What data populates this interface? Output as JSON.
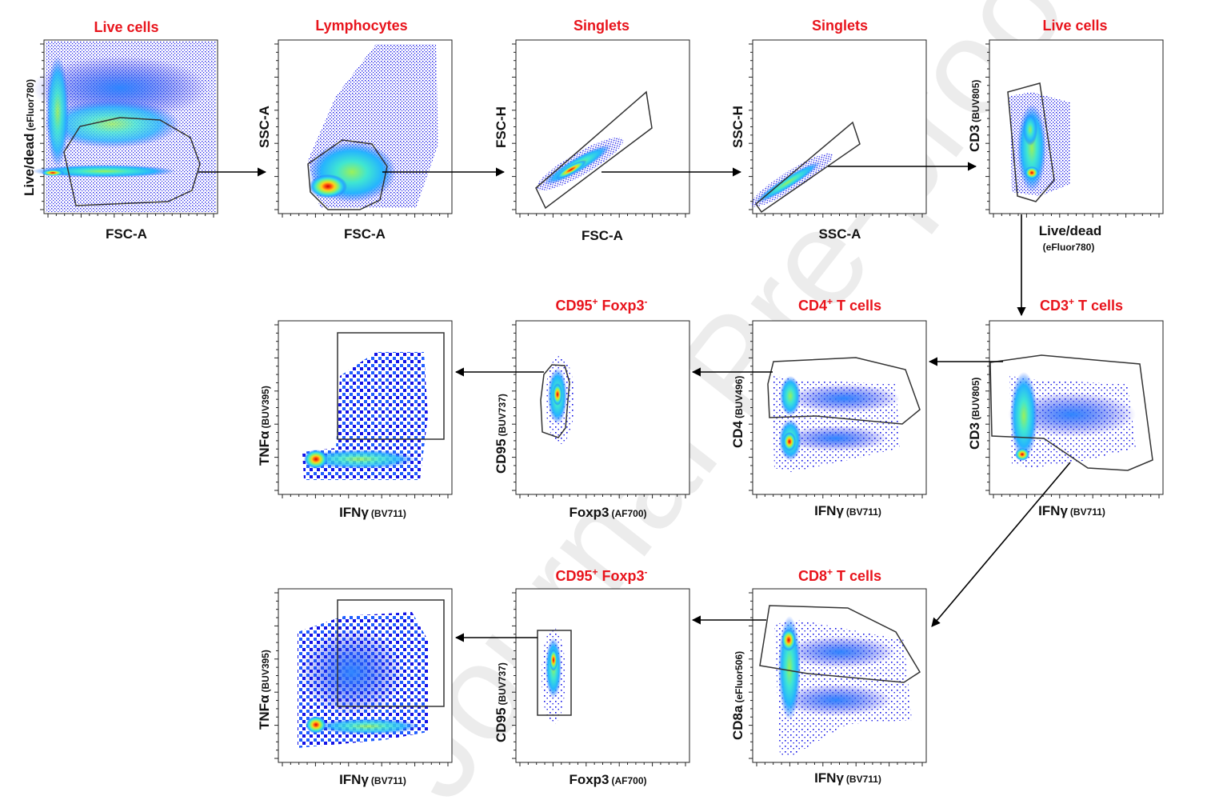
{
  "watermark": "Journal Pre-proof",
  "colors": {
    "title": "#e8141c",
    "axis": "#111111",
    "density": [
      "#1212e6",
      "#1f5cff",
      "#25b4ff",
      "#3fe6d2",
      "#9af05a",
      "#ffd11a",
      "#ff5a10",
      "#d40000"
    ]
  },
  "panels": [
    {
      "id": "p1",
      "title": "Live cells",
      "title_sup": "",
      "title_rest": "",
      "xlabel": "FSC-A",
      "xsub": "",
      "xsub_line2": "",
      "ylabel": "Live/dead",
      "ysub": "(eFluor780)"
    },
    {
      "id": "p2",
      "title": "Lymphocytes",
      "title_sup": "",
      "title_rest": "",
      "xlabel": "FSC-A",
      "xsub": "",
      "xsub_line2": "",
      "ylabel": "SSC-A",
      "ysub": ""
    },
    {
      "id": "p3",
      "title": "Singlets",
      "title_sup": "",
      "title_rest": "",
      "xlabel": "FSC-A",
      "xsub": "",
      "xsub_line2": "",
      "ylabel": "FSC-H",
      "ysub": ""
    },
    {
      "id": "p4",
      "title": "Singlets",
      "title_sup": "",
      "title_rest": "",
      "xlabel": "SSC-A",
      "xsub": "",
      "xsub_line2": "",
      "ylabel": "SSC-H",
      "ysub": ""
    },
    {
      "id": "p5",
      "title": "Live cells",
      "title_sup": "",
      "title_rest": "",
      "xlabel": "Live/dead",
      "xsub": "",
      "xsub_line2": "(eFluor780)",
      "ylabel": "CD3",
      "ysub": "(BUV805)"
    },
    {
      "id": "p6",
      "title": "CD3",
      "title_sup": "+",
      "title_rest": " T cells",
      "xlabel": "IFNγ",
      "xsub": "(BV711)",
      "xsub_line2": "",
      "ylabel": "CD3",
      "ysub": "(BUV805)"
    },
    {
      "id": "p7",
      "title": "CD4",
      "title_sup": "+",
      "title_rest": " T  cells",
      "xlabel": "IFNγ",
      "xsub": "(BV711)",
      "xsub_line2": "",
      "ylabel": "CD4",
      "ysub": "(BUV496)"
    },
    {
      "id": "p8",
      "title": "CD95",
      "title_sup": "+",
      "title_rest": " Foxp3",
      "title_sup2": "-",
      "xlabel": "Foxp3",
      "xsub": "(AF700)",
      "xsub_line2": "",
      "ylabel": "CD95",
      "ysub": "(BUV737)"
    },
    {
      "id": "p9",
      "title": "",
      "title_sup": "",
      "title_rest": "",
      "xlabel": "IFNγ",
      "xsub": "(BV711)",
      "xsub_line2": "",
      "ylabel": "TNFα",
      "ysub": "(BUV395)"
    },
    {
      "id": "p10",
      "title": "CD8",
      "title_sup": "+",
      "title_rest": " T  cells",
      "xlabel": "IFNγ",
      "xsub": "(BV711)",
      "xsub_line2": "",
      "ylabel": "CD8a",
      "ysub": "(eFluor506)"
    },
    {
      "id": "p11",
      "title": "CD95",
      "title_sup": "+",
      "title_rest": " Foxp3",
      "title_sup2": "-",
      "xlabel": "Foxp3",
      "xsub": "(AF700)",
      "xsub_line2": "",
      "ylabel": "CD95",
      "ysub": "(BUV737)"
    },
    {
      "id": "p12",
      "title": "",
      "title_sup": "",
      "title_rest": "",
      "xlabel": "IFNγ",
      "xsub": "(BV711)",
      "xsub_line2": "",
      "ylabel": "TNFα",
      "ysub": "(BUV395)"
    }
  ]
}
